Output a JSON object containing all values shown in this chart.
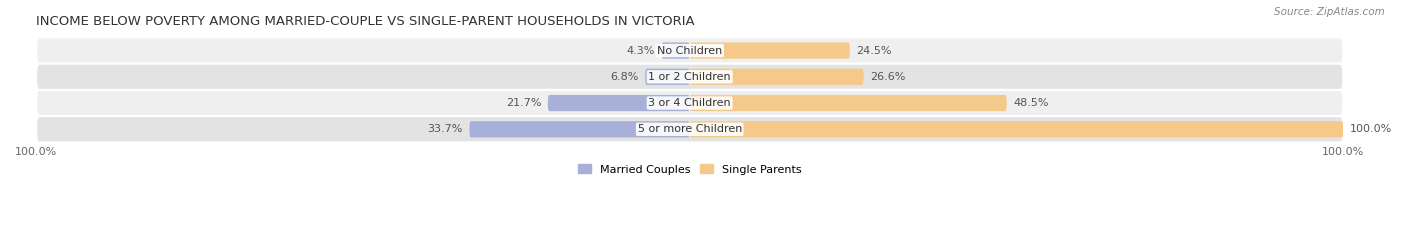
{
  "title": "INCOME BELOW POVERTY AMONG MARRIED-COUPLE VS SINGLE-PARENT HOUSEHOLDS IN VICTORIA",
  "source": "Source: ZipAtlas.com",
  "categories": [
    "No Children",
    "1 or 2 Children",
    "3 or 4 Children",
    "5 or more Children"
  ],
  "married_values": [
    4.3,
    6.8,
    21.7,
    33.7
  ],
  "single_values": [
    24.5,
    26.6,
    48.5,
    100.0
  ],
  "married_color": "#a8b0d8",
  "single_color": "#f5c98a",
  "row_bg_light": "#efefef",
  "row_bg_dark": "#e3e3e3",
  "axis_max": 100.0,
  "legend_married": "Married Couples",
  "legend_single": "Single Parents",
  "title_fontsize": 9.5,
  "label_fontsize": 8,
  "tick_fontsize": 8,
  "source_fontsize": 7.5
}
